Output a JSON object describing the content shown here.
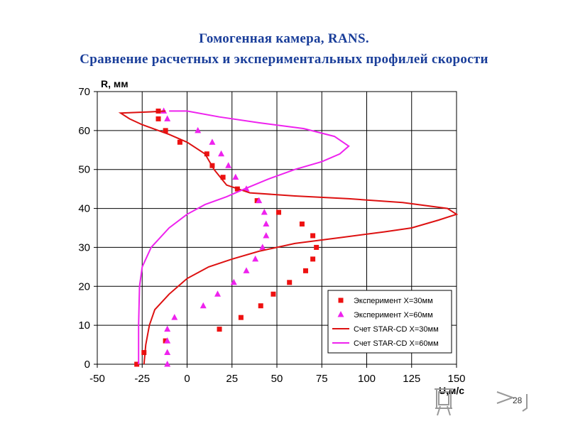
{
  "slide": {
    "title_line1": "Гомогенная камера, RANS.",
    "title_line2": "Сравнение расчетных и экспериментальных профилей скорости",
    "page_number": "28",
    "title_color": "#1a3e9a"
  },
  "chart_data": {
    "type": "scatter",
    "xlabel": "U,м/с",
    "ylabel": "R, мм",
    "xlim": [
      -50,
      150
    ],
    "ylim": [
      0,
      70
    ],
    "xticks": [
      -50,
      -25,
      0,
      25,
      50,
      75,
      100,
      125,
      150
    ],
    "yticks": [
      0,
      10,
      20,
      30,
      40,
      50,
      60,
      70
    ],
    "grid": true,
    "legend_position": "bottom-right",
    "series": [
      {
        "name": "Эксперимент X=30мм",
        "kind": "markers",
        "marker": "square",
        "color": "#ee1111",
        "points": [
          [
            -28,
            0
          ],
          [
            -24,
            3
          ],
          [
            -12,
            6
          ],
          [
            18,
            9
          ],
          [
            30,
            12
          ],
          [
            41,
            15
          ],
          [
            48,
            18
          ],
          [
            57,
            21
          ],
          [
            66,
            24
          ],
          [
            70,
            27
          ],
          [
            72,
            30
          ],
          [
            70,
            33
          ],
          [
            64,
            36
          ],
          [
            51,
            39
          ],
          [
            39,
            42
          ],
          [
            28,
            45
          ],
          [
            20,
            48
          ],
          [
            14,
            51
          ],
          [
            11,
            54
          ],
          [
            -4,
            57
          ],
          [
            -12,
            60
          ],
          [
            -16,
            63
          ],
          [
            -16,
            65
          ]
        ]
      },
      {
        "name": "Эксперимент X=60мм",
        "kind": "markers",
        "marker": "triangle",
        "color": "#ee22ee",
        "points": [
          [
            -11,
            0
          ],
          [
            -11,
            3
          ],
          [
            -11,
            6
          ],
          [
            -11,
            9
          ],
          [
            -7,
            12
          ],
          [
            9,
            15
          ],
          [
            17,
            18
          ],
          [
            26,
            21
          ],
          [
            33,
            24
          ],
          [
            38,
            27
          ],
          [
            42,
            30
          ],
          [
            44,
            33
          ],
          [
            44,
            36
          ],
          [
            43,
            39
          ],
          [
            40,
            42
          ],
          [
            33,
            45
          ],
          [
            27,
            48
          ],
          [
            23,
            51
          ],
          [
            19,
            54
          ],
          [
            14,
            57
          ],
          [
            6,
            60
          ],
          [
            -11,
            63
          ],
          [
            -13,
            65
          ]
        ]
      },
      {
        "name": "Счет STAR-CD X=30мм",
        "kind": "line",
        "color": "#dd1111",
        "points": [
          [
            -24,
            0
          ],
          [
            -23,
            5
          ],
          [
            -21,
            10
          ],
          [
            -18,
            14
          ],
          [
            -10,
            18
          ],
          [
            0,
            22
          ],
          [
            12,
            25
          ],
          [
            25,
            27
          ],
          [
            40,
            29
          ],
          [
            60,
            31
          ],
          [
            85,
            32.5
          ],
          [
            110,
            34
          ],
          [
            125,
            35
          ],
          [
            140,
            37
          ],
          [
            150,
            38.5
          ],
          [
            145,
            40
          ],
          [
            120,
            41.5
          ],
          [
            90,
            42.5
          ],
          [
            60,
            43.2
          ],
          [
            35,
            44
          ],
          [
            22,
            46
          ],
          [
            15,
            50
          ],
          [
            10,
            54
          ],
          [
            0,
            57
          ],
          [
            -10,
            59
          ],
          [
            -25,
            61.5
          ],
          [
            -32,
            63
          ],
          [
            -37,
            64.5
          ],
          [
            -20,
            64.8
          ],
          [
            -12,
            65
          ]
        ]
      },
      {
        "name": "Счет STAR-CD X=60мм",
        "kind": "line",
        "color": "#ee22ee",
        "points": [
          [
            -27,
            0
          ],
          [
            -27,
            10
          ],
          [
            -26.5,
            20
          ],
          [
            -25,
            25
          ],
          [
            -20,
            30
          ],
          [
            -10,
            35
          ],
          [
            0,
            38.5
          ],
          [
            10,
            41
          ],
          [
            22,
            43
          ],
          [
            32,
            45
          ],
          [
            45,
            47.5
          ],
          [
            60,
            50
          ],
          [
            75,
            52
          ],
          [
            85,
            54
          ],
          [
            90,
            56
          ],
          [
            82,
            58.5
          ],
          [
            65,
            60.5
          ],
          [
            40,
            62
          ],
          [
            18,
            63.5
          ],
          [
            0,
            65
          ],
          [
            -10,
            65
          ]
        ]
      }
    ]
  }
}
